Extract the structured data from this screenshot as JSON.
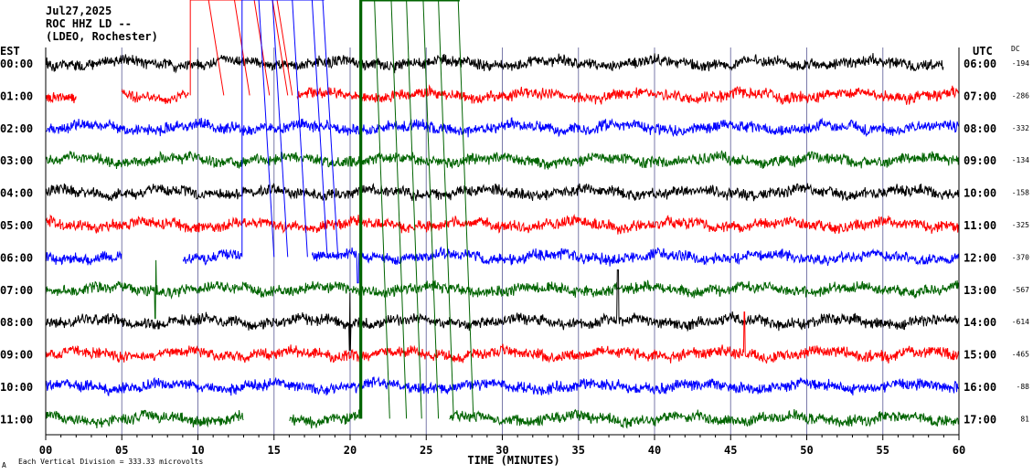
{
  "header": {
    "date": "Jul27,2025",
    "station": "ROC HHZ LD --",
    "network": "(LDEO, Rochester)"
  },
  "labels": {
    "left_tz": "EST",
    "right_tz": "UTC",
    "dc": "DC",
    "xlabel": "TIME (MINUTES)",
    "footer": "Each Vertical Division =  333.33 microvolts",
    "corner": "A"
  },
  "chart_data": {
    "type": "line",
    "title": "ROC HHZ LD --",
    "xlabel": "TIME (MINUTES)",
    "xlim": [
      0,
      60
    ],
    "x_ticks": [
      "00",
      "05",
      "10",
      "15",
      "20",
      "25",
      "30",
      "35",
      "40",
      "45",
      "50",
      "55",
      "60"
    ],
    "rows": [
      {
        "est": "00:00",
        "utc": "06:00",
        "dc": "-194",
        "color": "#000000",
        "end": 59,
        "gaps": []
      },
      {
        "est": "01:00",
        "utc": "07:00",
        "dc": "-286",
        "color": "#ff0000",
        "end": 60,
        "gaps": [
          [
            2,
            5
          ],
          [
            9.4,
            16.5
          ]
        ]
      },
      {
        "est": "02:00",
        "utc": "08:00",
        "dc": "-332",
        "color": "#0000ff",
        "end": 60,
        "gaps": []
      },
      {
        "est": "03:00",
        "utc": "09:00",
        "dc": "-134",
        "color": "#006400",
        "end": 60,
        "gaps": []
      },
      {
        "est": "04:00",
        "utc": "10:00",
        "dc": "-158",
        "color": "#000000",
        "end": 60,
        "gaps": []
      },
      {
        "est": "05:00",
        "utc": "11:00",
        "dc": "-325",
        "color": "#ff0000",
        "end": 60,
        "gaps": []
      },
      {
        "est": "06:00",
        "utc": "12:00",
        "dc": "-370",
        "color": "#0000ff",
        "end": 60,
        "gaps": [
          [
            5,
            9
          ],
          [
            12.9,
            17.5
          ]
        ]
      },
      {
        "est": "07:00",
        "utc": "13:00",
        "dc": "-567",
        "color": "#006400",
        "end": 60,
        "gaps": []
      },
      {
        "est": "08:00",
        "utc": "14:00",
        "dc": "-614",
        "color": "#000000",
        "end": 60,
        "gaps": []
      },
      {
        "est": "09:00",
        "utc": "15:00",
        "dc": "-465",
        "color": "#ff0000",
        "end": 60,
        "gaps": []
      },
      {
        "est": "10:00",
        "utc": "16:00",
        "dc": "-88",
        "color": "#0000ff",
        "end": 60,
        "gaps": []
      },
      {
        "est": "11:00",
        "utc": "17:00",
        "dc": "81",
        "color": "#006400",
        "end": 60,
        "gaps": [
          [
            13,
            16
          ],
          [
            20.7,
            26.5
          ]
        ]
      }
    ],
    "spikes": [
      {
        "row": 8,
        "x": 37.6,
        "amp": 1.6
      },
      {
        "row": 9,
        "x": 45.9,
        "amp": 1.3
      },
      {
        "row": 7,
        "x": 7.2,
        "amp": 0.9
      },
      {
        "row": 8,
        "x": 20.0,
        "amp": 0.9
      },
      {
        "row": 6,
        "x": 20.5,
        "amp": 0.8
      }
    ],
    "offscale_traces": [
      {
        "color": "#ff0000",
        "x": [
          9.5,
          10.8,
          12.5,
          13.8,
          15.0,
          15.3
        ],
        "top_row": 0,
        "bottom_row": 1
      },
      {
        "color": "#0000ff",
        "x": [
          12.9,
          14.1,
          15.0,
          16.3,
          17.6,
          18.3
        ],
        "top_row": 0,
        "bottom_row": 6
      },
      {
        "color": "#006400",
        "x": [
          20.7,
          21.7,
          22.8,
          23.8,
          24.9,
          25.9,
          27.2
        ],
        "top_row": 0,
        "bottom_row": 11
      }
    ],
    "grid": true
  }
}
